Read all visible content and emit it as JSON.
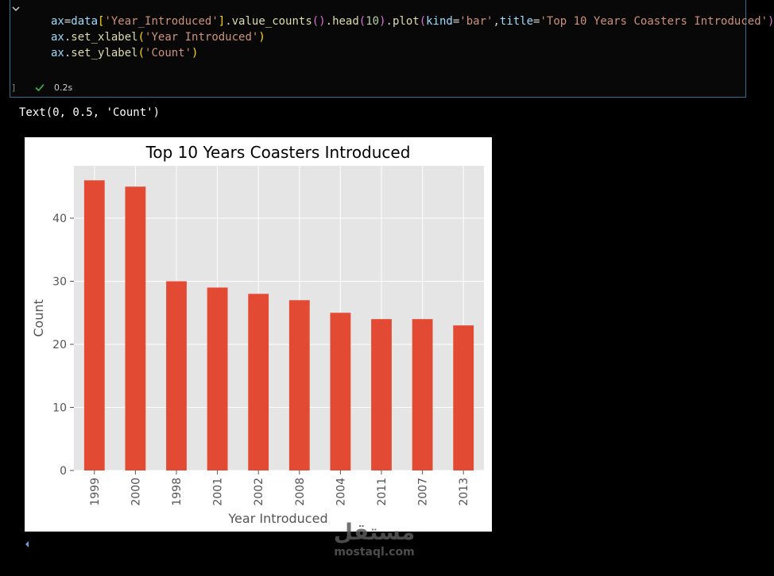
{
  "cell": {
    "code_lines": [
      [
        {
          "t": "ax",
          "c": "#9cdcfe"
        },
        {
          "t": "=",
          "c": "#d4d4d4"
        },
        {
          "t": "data",
          "c": "#9cdcfe"
        },
        {
          "t": "[",
          "c": "#ffd700"
        },
        {
          "t": "'Year_Introduced'",
          "c": "#ce9178"
        },
        {
          "t": "]",
          "c": "#ffd700"
        },
        {
          "t": ".",
          "c": "#d4d4d4"
        },
        {
          "t": "value_counts",
          "c": "#dcdcaa"
        },
        {
          "t": "()",
          "c": "#da70d6"
        },
        {
          "t": ".",
          "c": "#d4d4d4"
        },
        {
          "t": "head",
          "c": "#dcdcaa"
        },
        {
          "t": "(",
          "c": "#da70d6"
        },
        {
          "t": "10",
          "c": "#b5cea8"
        },
        {
          "t": ")",
          "c": "#da70d6"
        },
        {
          "t": ".",
          "c": "#d4d4d4"
        },
        {
          "t": "plot",
          "c": "#dcdcaa"
        },
        {
          "t": "(",
          "c": "#da70d6"
        },
        {
          "t": "kind",
          "c": "#9cdcfe"
        },
        {
          "t": "=",
          "c": "#d4d4d4"
        },
        {
          "t": "'bar'",
          "c": "#ce9178"
        },
        {
          "t": ",",
          "c": "#d4d4d4"
        },
        {
          "t": "title",
          "c": "#9cdcfe"
        },
        {
          "t": "=",
          "c": "#d4d4d4"
        },
        {
          "t": "'Top 10 Years Coasters Introduced'",
          "c": "#ce9178"
        },
        {
          "t": ")",
          "c": "#da70d6"
        }
      ],
      [
        {
          "t": "ax",
          "c": "#9cdcfe"
        },
        {
          "t": ".",
          "c": "#d4d4d4"
        },
        {
          "t": "set_xlabel",
          "c": "#dcdcaa"
        },
        {
          "t": "(",
          "c": "#ffd700"
        },
        {
          "t": "'Year Introduced'",
          "c": "#ce9178"
        },
        {
          "t": ")",
          "c": "#ffd700"
        }
      ],
      [
        {
          "t": "ax",
          "c": "#9cdcfe"
        },
        {
          "t": ".",
          "c": "#d4d4d4"
        },
        {
          "t": "set_ylabel",
          "c": "#dcdcaa"
        },
        {
          "t": "(",
          "c": "#ffd700"
        },
        {
          "t": "'Count'",
          "c": "#ce9178"
        },
        {
          "t": ")",
          "c": "#ffd700"
        }
      ]
    ],
    "execution_bracket": "]",
    "exec_time": "0.2s",
    "status_icon": "checkmark-icon",
    "success_color": "#3fb950"
  },
  "output": {
    "text": "Text(0, 0.5, 'Count')"
  },
  "chart_data": {
    "type": "bar",
    "title": "Top 10 Years Coasters Introduced",
    "xlabel": "Year Introduced",
    "ylabel": "Count",
    "categories": [
      "1999",
      "2000",
      "1998",
      "2001",
      "2002",
      "2008",
      "2004",
      "2011",
      "2007",
      "2013"
    ],
    "values": [
      46,
      45,
      30,
      29,
      28,
      27,
      25,
      24,
      24,
      23
    ],
    "ylim": [
      0,
      48.3
    ],
    "yticks": [
      0,
      10,
      20,
      30,
      40
    ],
    "grid": true,
    "style": "ggplot",
    "bar_color": "#e24a33",
    "axes_facecolor": "#e5e5e5",
    "grid_color": "#ffffff",
    "tick_label_color": "#555555",
    "label_color": "#555555",
    "title_color": "#000000"
  },
  "watermark": {
    "arabic": "مستقل",
    "latin": "mostaql.com"
  }
}
